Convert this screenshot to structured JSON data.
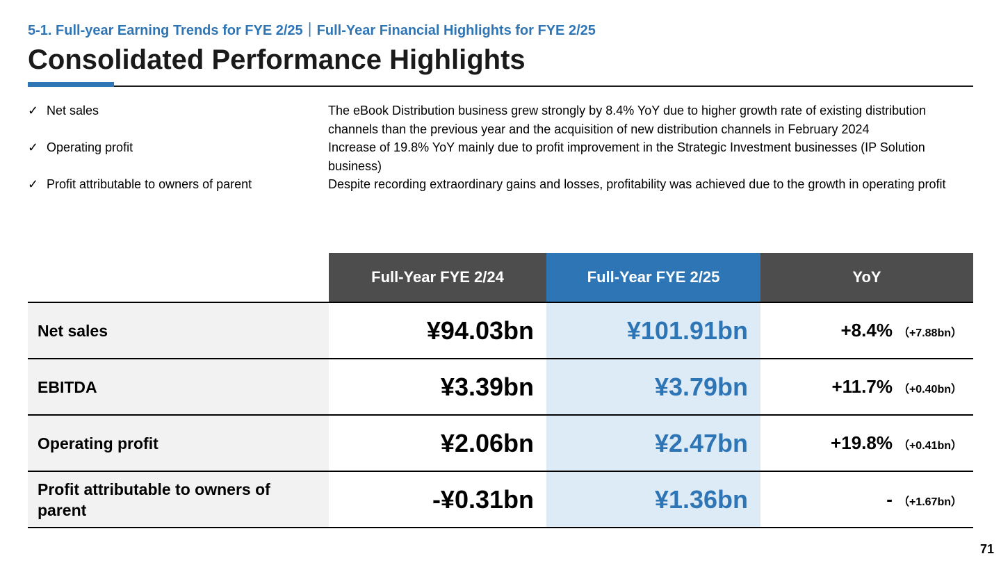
{
  "header": {
    "breadcrumb": "5-1. Full-year Earning Trends for FYE 2/25｜Full-Year Financial Highlights for FYE 2/25",
    "title": "Consolidated Performance Highlights",
    "accent_color": "#2E75B6"
  },
  "notes": [
    {
      "check": "✓",
      "label": "Net sales",
      "text": "The eBook Distribution business grew strongly by 8.4% YoY due to higher growth rate of existing distribution channels than the previous year and the acquisition of new distribution channels in February 2024"
    },
    {
      "check": "✓",
      "label": "Operating profit",
      "text": "Increase of 19.8% YoY mainly due to profit improvement in the Strategic Investment businesses (IP Solution business)"
    },
    {
      "check": "✓",
      "label": "Profit attributable to owners of parent",
      "text": "Despite recording extraordinary gains and losses, profitability was achieved due to the growth in operating profit"
    }
  ],
  "table": {
    "headers": [
      "Full-Year FYE 2/24",
      "Full-Year FYE 2/25",
      "YoY"
    ],
    "rows": [
      {
        "label": "Net sales",
        "prev": "¥94.03bn",
        "cur": "¥101.91bn",
        "yoy_pct": "+8.4%",
        "yoy_diff": "（+7.88bn）"
      },
      {
        "label": "EBITDA",
        "prev": "¥3.39bn",
        "cur": "¥3.79bn",
        "yoy_pct": "+11.7%",
        "yoy_diff": "（+0.40bn）"
      },
      {
        "label": "Operating profit",
        "prev": "¥2.06bn",
        "cur": "¥2.47bn",
        "yoy_pct": "+19.8%",
        "yoy_diff": "（+0.41bn）"
      },
      {
        "label": "Profit attributable to owners of parent",
        "prev": "-¥0.31bn",
        "cur": "¥1.36bn",
        "yoy_pct": "-",
        "yoy_diff": "（+1.67bn）"
      }
    ]
  },
  "page_number": "71"
}
